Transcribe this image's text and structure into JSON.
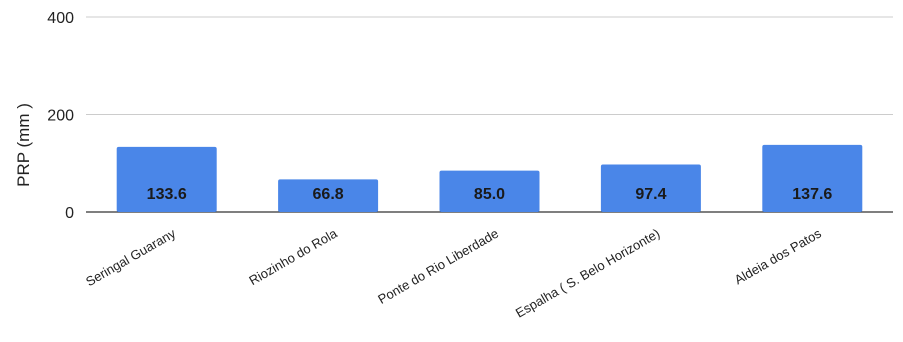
{
  "chart_data": {
    "type": "bar",
    "categories": [
      "Seringal Guarany",
      "Riozinho do Rola",
      "Ponte do Rio Liberdade",
      "Espalha ( S. Belo Horizonte)",
      "Aldeia dos Patos"
    ],
    "values": [
      133.6,
      66.8,
      85.0,
      97.4,
      137.6
    ],
    "data_labels": [
      "133.6",
      "66.8",
      "85.0",
      "97.4",
      "137.6"
    ],
    "ylabel": "PRP (mm )",
    "xlabel": "",
    "ylim": [
      0,
      400
    ],
    "yticks": [
      0,
      200,
      400
    ],
    "ytick_labels": [
      "0",
      "200",
      "400"
    ],
    "grid": true,
    "bar_color": "#4a86e8",
    "legend": "none"
  }
}
